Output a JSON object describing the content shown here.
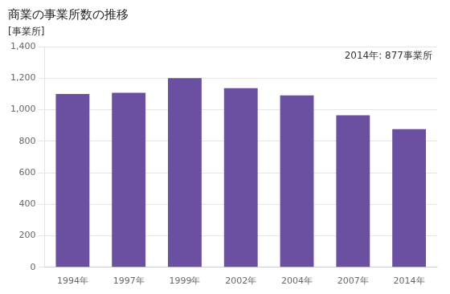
{
  "chart_data": {
    "type": "bar",
    "title": "商業の事業所数の推移",
    "ylabel": "[事業所]",
    "annotation": "2014年: 877事業所",
    "categories": [
      "1994年",
      "1997年",
      "1999年",
      "2002年",
      "2004年",
      "2007年",
      "2014年"
    ],
    "values": [
      1099,
      1107,
      1200,
      1136,
      1091,
      964,
      877
    ],
    "color": "#6b4fa0",
    "ylim": [
      0,
      1400
    ],
    "yticks": [
      0,
      200,
      400,
      600,
      800,
      {
        "value": 1000,
        "label": "1,000"
      },
      {
        "value": 1200,
        "label": "1,200"
      },
      {
        "value": 1400,
        "label": "1,400"
      }
    ],
    "grid": true
  }
}
